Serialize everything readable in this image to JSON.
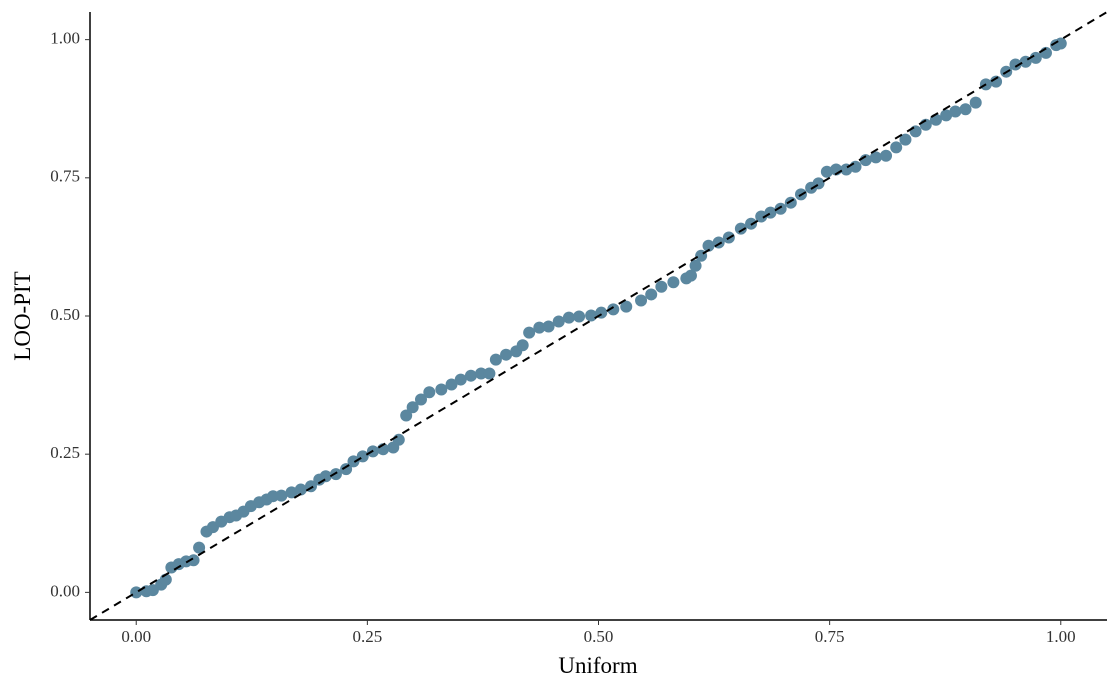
{
  "chart_data": {
    "type": "scatter",
    "xlabel": "Uniform",
    "ylabel": "LOO-PIT",
    "color": "#5b879f",
    "xlim": [
      -0.05,
      1.05
    ],
    "ylim": [
      -0.05,
      1.05
    ],
    "xticks": [
      {
        "value": 0,
        "label": "0.00"
      },
      {
        "value": 0.25,
        "label": "0.25"
      },
      {
        "value": 0.5,
        "label": "0.50"
      },
      {
        "value": 0.75,
        "label": "0.75"
      },
      {
        "value": 1,
        "label": "1.00"
      }
    ],
    "yticks": [
      {
        "value": 0,
        "label": "0.00"
      },
      {
        "value": 0.25,
        "label": "0.25"
      },
      {
        "value": 0.5,
        "label": "0.50"
      },
      {
        "value": 0.75,
        "label": "0.75"
      },
      {
        "value": 1,
        "label": "1.00"
      }
    ],
    "reference_line": "y=x",
    "x": [
      0,
      0.011,
      0.018,
      0.027,
      0.032,
      0.038,
      0.046,
      0.054,
      0.062,
      0.068,
      0.076,
      0.083,
      0.092,
      0.101,
      0.108,
      0.116,
      0.124,
      0.133,
      0.141,
      0.148,
      0.157,
      0.168,
      0.178,
      0.189,
      0.198,
      0.205,
      0.216,
      0.227,
      0.235,
      0.245,
      0.256,
      0.267,
      0.278,
      0.284,
      0.292,
      0.299,
      0.308,
      0.317,
      0.33,
      0.341,
      0.351,
      0.362,
      0.373,
      0.382,
      0.389,
      0.4,
      0.411,
      0.418,
      0.425,
      0.436,
      0.446,
      0.457,
      0.468,
      0.479,
      0.492,
      0.503,
      0.516,
      0.53,
      0.546,
      0.557,
      0.568,
      0.581,
      0.595,
      0.6,
      0.605,
      0.611,
      0.619,
      0.63,
      0.641,
      0.654,
      0.665,
      0.676,
      0.686,
      0.697,
      0.708,
      0.719,
      0.73,
      0.738,
      0.747,
      0.757,
      0.768,
      0.778,
      0.789,
      0.8,
      0.811,
      0.822,
      0.832,
      0.843,
      0.854,
      0.865,
      0.876,
      0.886,
      0.897,
      0.908,
      0.919,
      0.93,
      0.941,
      0.951,
      0.962,
      0.973,
      0.984,
      0.995,
      1.0
    ],
    "values": [
      0,
      0.002,
      0.004,
      0.014,
      0.023,
      0.045,
      0.051,
      0.056,
      0.058,
      0.081,
      0.11,
      0.118,
      0.128,
      0.136,
      0.139,
      0.146,
      0.156,
      0.163,
      0.168,
      0.174,
      0.175,
      0.181,
      0.186,
      0.192,
      0.204,
      0.21,
      0.214,
      0.223,
      0.237,
      0.246,
      0.255,
      0.259,
      0.262,
      0.276,
      0.32,
      0.335,
      0.349,
      0.362,
      0.367,
      0.376,
      0.385,
      0.392,
      0.396,
      0.396,
      0.421,
      0.43,
      0.436,
      0.447,
      0.47,
      0.479,
      0.481,
      0.49,
      0.497,
      0.499,
      0.501,
      0.506,
      0.512,
      0.517,
      0.528,
      0.539,
      0.553,
      0.561,
      0.568,
      0.573,
      0.591,
      0.609,
      0.627,
      0.633,
      0.642,
      0.658,
      0.667,
      0.68,
      0.687,
      0.694,
      0.705,
      0.72,
      0.732,
      0.74,
      0.761,
      0.765,
      0.765,
      0.77,
      0.782,
      0.787,
      0.79,
      0.805,
      0.819,
      0.834,
      0.846,
      0.855,
      0.863,
      0.87,
      0.874,
      0.886,
      0.919,
      0.924,
      0.942,
      0.955,
      0.96,
      0.967,
      0.976,
      0.99,
      0.993
    ]
  }
}
